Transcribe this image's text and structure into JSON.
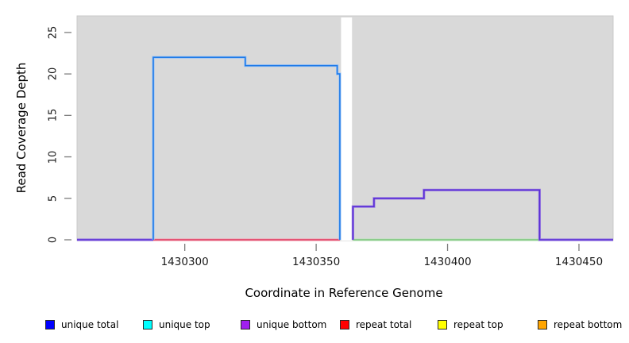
{
  "figure": {
    "y_axis": {
      "label": "Read Coverage Depth",
      "ticks": [
        "0",
        "5",
        "10",
        "15",
        "20",
        "25"
      ]
    },
    "x_axis": {
      "label": "Coordinate in Reference Genome",
      "ticks": [
        "1430300",
        "1430350",
        "1430400",
        "1430450"
      ]
    }
  },
  "legend": {
    "items": [
      {
        "label": "unique total",
        "color": "#0000FF"
      },
      {
        "label": "unique top",
        "color": "#00FFFF"
      },
      {
        "label": "unique bottom",
        "color": "#A020F0"
      },
      {
        "label": "repeat total",
        "color": "#FF0000"
      },
      {
        "label": "repeat top",
        "color": "#FFFF00"
      },
      {
        "label": "repeat bottom",
        "color": "#FFA500"
      }
    ]
  },
  "chart_data": {
    "type": "line",
    "subtype": "step-coverage",
    "title": "",
    "xlabel": "Coordinate in Reference Genome",
    "ylabel": "Read Coverage Depth",
    "xlim": [
      1430259,
      1430463
    ],
    "ylim": [
      0,
      27
    ],
    "x_ticks": [
      1430300,
      1430350,
      1430400,
      1430450
    ],
    "y_ticks": [
      0,
      5,
      10,
      15,
      20,
      25
    ],
    "plot_bg": "#D9D9D9",
    "grid": false,
    "legend_position": "bottom",
    "masked_region": {
      "x_start": 1430359,
      "x_end": 1430364
    },
    "series": [
      {
        "name": "baseline left (purple, depth 0)",
        "color": "#5A2ED6",
        "halo": "#9B7FE0",
        "points": [
          [
            1430259,
            0
          ],
          [
            1430288,
            0
          ]
        ]
      },
      {
        "name": "repeat total baseline (red, depth 0)",
        "color": "#E03A5E",
        "halo": "#F0A4B4",
        "points": [
          [
            1430288,
            0
          ],
          [
            1430359,
            0
          ]
        ]
      },
      {
        "name": "baseline right (green, depth 0)",
        "color": "#7CC47C",
        "halo": "#BEE3BE",
        "points": [
          [
            1430364,
            0
          ],
          [
            1430435,
            0
          ]
        ]
      },
      {
        "name": "unique coverage left block (22, 21, 20)",
        "color": "#1F7BE8",
        "halo": "#9CC3F5",
        "points": [
          [
            1430288,
            0
          ],
          [
            1430288,
            22
          ],
          [
            1430323,
            22
          ],
          [
            1430323,
            21
          ],
          [
            1430358,
            21
          ],
          [
            1430358,
            20
          ],
          [
            1430359,
            20
          ],
          [
            1430359,
            0
          ]
        ]
      },
      {
        "name": "unique bottom right block (4, 5, 6)",
        "color": "#5A2ED6",
        "halo": "#9B7FE0",
        "points": [
          [
            1430364,
            0
          ],
          [
            1430364,
            4
          ],
          [
            1430372,
            4
          ],
          [
            1430372,
            5
          ],
          [
            1430391,
            5
          ],
          [
            1430391,
            6
          ],
          [
            1430435,
            6
          ],
          [
            1430435,
            0
          ],
          [
            1430463,
            0
          ]
        ]
      }
    ]
  }
}
